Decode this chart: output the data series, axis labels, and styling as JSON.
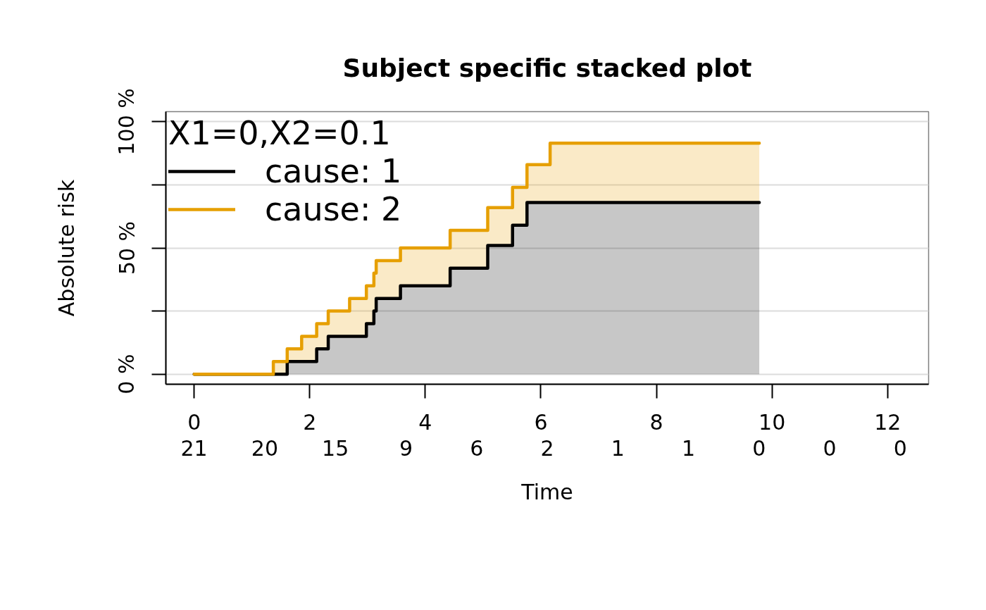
{
  "chart_data": {
    "type": "area",
    "title": "Subject specific stacked plot",
    "xlabel": "Time",
    "ylabel": "Absolute risk",
    "legend_title": "X1=0,X2=0.1",
    "x": [
      0,
      1.37,
      1.61,
      1.86,
      2.12,
      2.32,
      2.69,
      2.98,
      3.11,
      3.15,
      3.57,
      4.43,
      5.08,
      5.51,
      5.76,
      6.16,
      9.78
    ],
    "series": [
      {
        "name": "cause: 1",
        "color": "#000000",
        "values": [
          0,
          0,
          5,
          5,
          10,
          15,
          15,
          20,
          25,
          30,
          35,
          42,
          51,
          59,
          68,
          68,
          68
        ]
      },
      {
        "name": "cause: 2",
        "color": "#e69f00",
        "values": [
          0,
          5,
          5,
          10,
          10,
          10,
          15,
          15,
          15,
          15,
          15,
          15,
          15,
          15,
          15,
          23.5,
          23.5
        ]
      }
    ],
    "stacked": true,
    "xlim": [
      -0.49,
      12.71
    ],
    "xticks": [
      0,
      2,
      4,
      6,
      8,
      10,
      12
    ],
    "ylim": [
      -4,
      104
    ],
    "yticks": [
      {
        "value": 0,
        "label": "0 %"
      },
      {
        "value": 25,
        "label": null
      },
      {
        "value": 50,
        "label": "50 %"
      },
      {
        "value": 75,
        "label": null
      },
      {
        "value": 100,
        "label": "100 %"
      }
    ],
    "annotations": [
      "21",
      "20",
      "15",
      "9",
      "6",
      "2",
      "1",
      "1",
      "0",
      "0",
      "0"
    ],
    "grid": "y",
    "legend": "top left"
  }
}
